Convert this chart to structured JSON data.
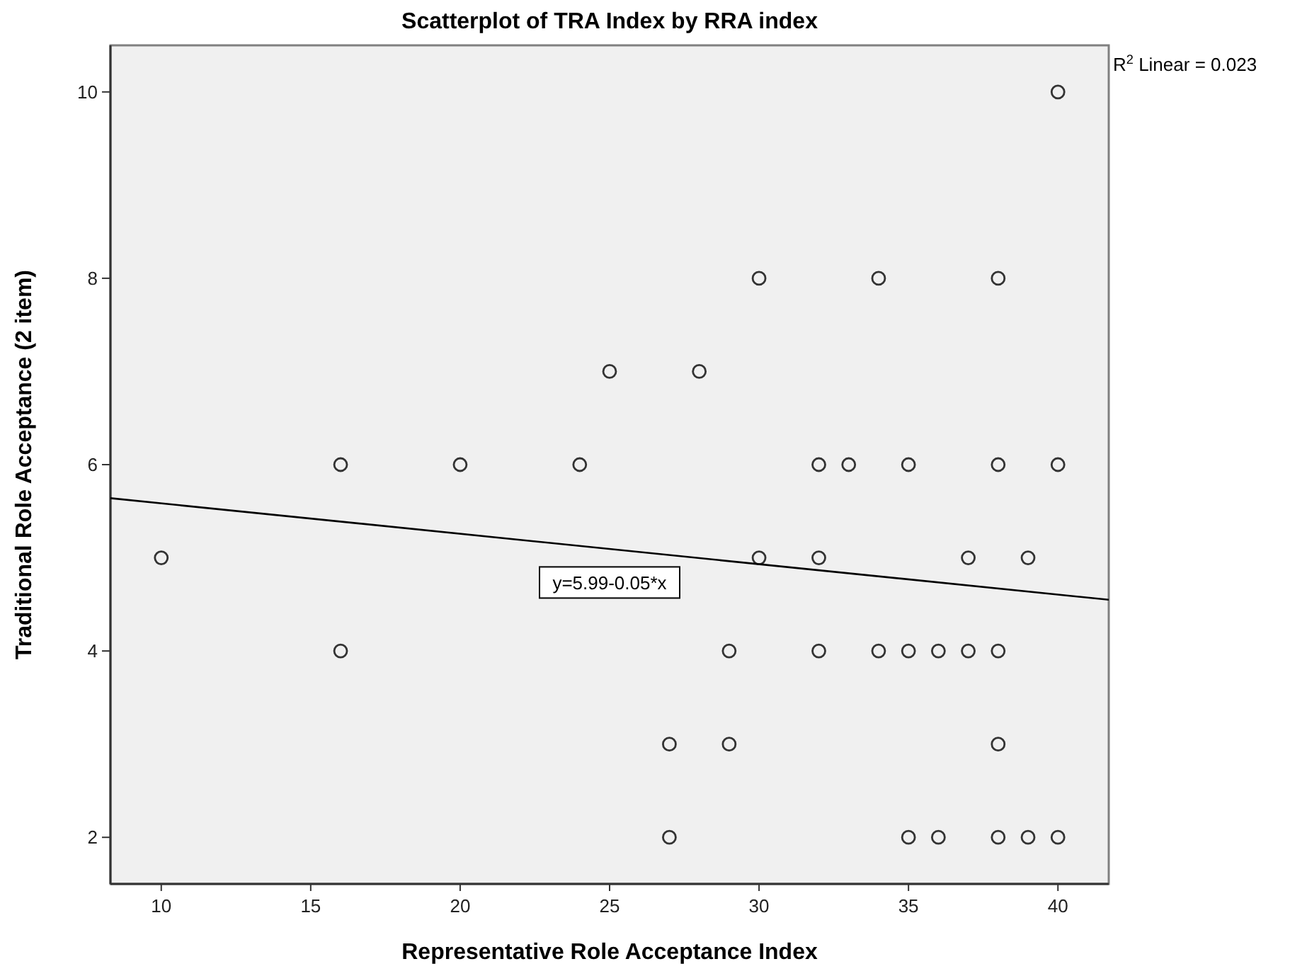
{
  "chart_data": {
    "type": "scatter",
    "title": "Scatterplot of TRA Index by RRA index",
    "xlabel": "Representative Role Acceptance Index",
    "ylabel": "Traditional Role Acceptance (2 item)",
    "xlim": [
      8.3,
      41.7
    ],
    "xticks": [
      10,
      15,
      20,
      25,
      30,
      35,
      40
    ],
    "ylim": [
      1.5,
      10.5
    ],
    "yticks": [
      2,
      4,
      6,
      8,
      10
    ],
    "grid": false,
    "marker": "circle",
    "series": [
      {
        "color": "#333333",
        "x": [
          40,
          30,
          34,
          38,
          25,
          28,
          16,
          20,
          24,
          32,
          33,
          35,
          38,
          40,
          10,
          30,
          32,
          37,
          39,
          16,
          29,
          32,
          34,
          35,
          36,
          37,
          38,
          27,
          29,
          38,
          27,
          35,
          36,
          38,
          39,
          40
        ],
        "values": [
          10,
          8,
          8,
          8,
          7,
          7,
          6,
          6,
          6,
          6,
          6,
          6,
          6,
          6,
          5,
          5,
          5,
          5,
          5,
          4,
          4,
          4,
          4,
          4,
          4,
          4,
          4,
          3,
          3,
          3,
          2,
          2,
          2,
          2,
          2,
          2
        ]
      },
      {
        "type": "line",
        "color": "#000000",
        "marker": "none",
        "x": [
          8.3,
          41.7
        ],
        "values": [
          5.64,
          4.55
        ]
      }
    ],
    "annotations": [
      "R$^{2}$ Linear = 0.023",
      {
        "text": "y=5.99-0.05*x",
        "x": 25,
        "y": 5.1
      }
    ]
  }
}
